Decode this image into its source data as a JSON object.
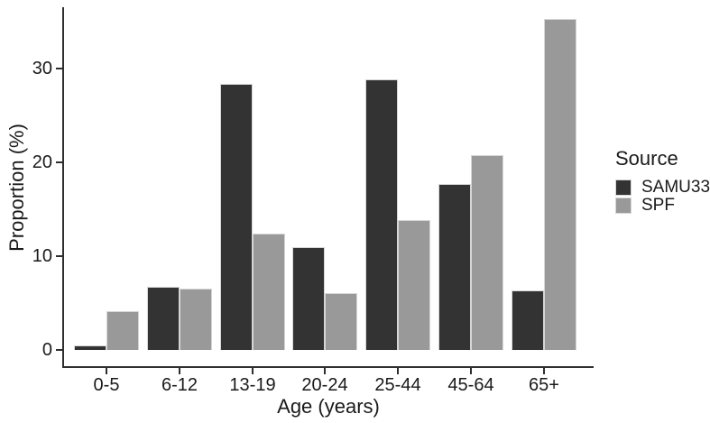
{
  "chart_data": {
    "type": "bar",
    "title": "",
    "xlabel": "Age (years)",
    "ylabel": "Proportion (%)",
    "categories": [
      "0-5",
      "6-12",
      "13-19",
      "20-24",
      "25-44",
      "45-64",
      "65+"
    ],
    "series": [
      {
        "name": "SAMU33",
        "color": "#333333",
        "values": [
          0.5,
          6.7,
          28.4,
          11.0,
          28.8,
          17.7,
          6.3
        ]
      },
      {
        "name": "SPF",
        "color": "#999999",
        "values": [
          4.1,
          6.5,
          12.4,
          6.1,
          13.8,
          20.8,
          35.3
        ]
      }
    ],
    "y_ticks": [
      0,
      10,
      20,
      30
    ],
    "ylim": [
      0,
      37
    ],
    "legend_title": "Source",
    "legend_position": "right",
    "grid": false,
    "bar_outline_color": "#d6d6d6",
    "axis_color": "#2e2e2e"
  }
}
